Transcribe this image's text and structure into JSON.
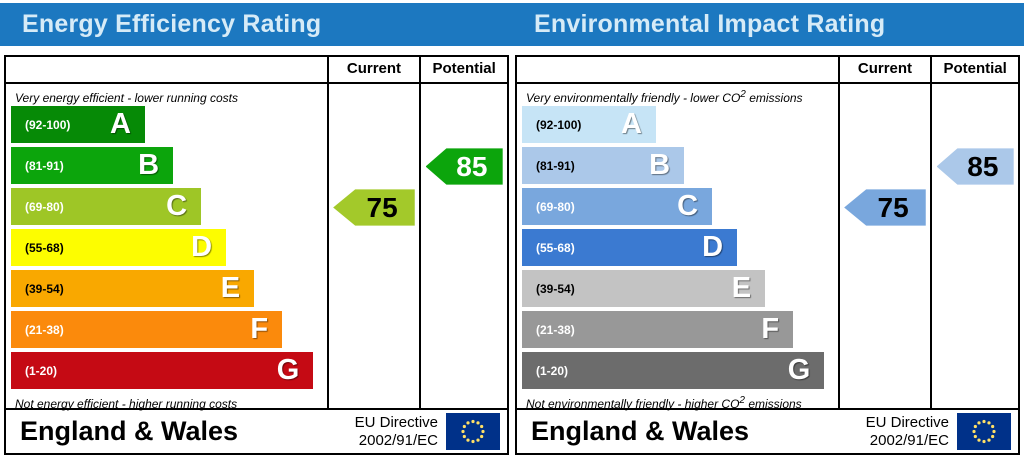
{
  "page": {
    "left_title": "Energy Efficiency Rating",
    "right_title": "Environmental Impact Rating"
  },
  "colors": {
    "header_bar": "#1c78c0",
    "header_text": "#d6ebf7",
    "eu_flag_blue": "#003189",
    "eu_flag_stars": "#ffe066"
  },
  "chart_data": [
    {
      "type": "bar",
      "title": "Energy Efficiency Rating",
      "columns": {
        "current": "Current",
        "potential": "Potential"
      },
      "top_caption": {
        "pre": "Very energy efficient - lower running costs",
        "sup": "",
        "post": ""
      },
      "bottom_caption": {
        "pre": "Not energy efficient - higher running costs",
        "sup": "",
        "post": ""
      },
      "bands": [
        {
          "letter": "A",
          "range_label": "(92-100)",
          "min": 92,
          "max": 100,
          "color": "#068a06",
          "range_text_color": "#ffffff",
          "width_pct": 43
        },
        {
          "letter": "B",
          "range_label": "(81-91)",
          "min": 81,
          "max": 91,
          "color": "#0ca50c",
          "range_text_color": "#ffffff",
          "width_pct": 52
        },
        {
          "letter": "C",
          "range_label": "(69-80)",
          "min": 69,
          "max": 80,
          "color": "#9ec626",
          "range_text_color": "#ffffff",
          "width_pct": 61
        },
        {
          "letter": "D",
          "range_label": "(55-68)",
          "min": 55,
          "max": 68,
          "color": "#fdfd00",
          "range_text_color": "#000000",
          "width_pct": 69
        },
        {
          "letter": "E",
          "range_label": "(39-54)",
          "min": 39,
          "max": 54,
          "color": "#f9a800",
          "range_text_color": "#000000",
          "width_pct": 78
        },
        {
          "letter": "F",
          "range_label": "(21-38)",
          "min": 21,
          "max": 38,
          "color": "#fb8a0c",
          "range_text_color": "#ffffff",
          "width_pct": 87
        },
        {
          "letter": "G",
          "range_label": "(1-20)",
          "min": 1,
          "max": 20,
          "color": "#c50a14",
          "range_text_color": "#ffffff",
          "width_pct": 97
        }
      ],
      "current": {
        "value": 75,
        "band": "C",
        "band_index": 2,
        "arrow_color": "#a3c92a",
        "text_color": "#000000"
      },
      "potential": {
        "value": 85,
        "band": "B",
        "band_index": 1,
        "arrow_color": "#0ca50c",
        "text_color": "#ffffff"
      },
      "footer": {
        "region": "England & Wales",
        "directive_line1": "EU Directive",
        "directive_line2": "2002/91/EC"
      }
    },
    {
      "type": "bar",
      "title": "Environmental Impact Rating",
      "columns": {
        "current": "Current",
        "potential": "Potential"
      },
      "top_caption": {
        "pre": "Very environmentally friendly - lower CO",
        "sup": "2",
        "post": " emissions"
      },
      "bottom_caption": {
        "pre": "Not environmentally friendly - higher CO",
        "sup": "2",
        "post": " emissions"
      },
      "bands": [
        {
          "letter": "A",
          "range_label": "(92-100)",
          "min": 92,
          "max": 100,
          "color": "#c6e4f6",
          "range_text_color": "#000000",
          "width_pct": 43
        },
        {
          "letter": "B",
          "range_label": "(81-91)",
          "min": 81,
          "max": 91,
          "color": "#abc8e9",
          "range_text_color": "#000000",
          "width_pct": 52
        },
        {
          "letter": "C",
          "range_label": "(69-80)",
          "min": 69,
          "max": 80,
          "color": "#79a7dd",
          "range_text_color": "#ffffff",
          "width_pct": 61
        },
        {
          "letter": "D",
          "range_label": "(55-68)",
          "min": 55,
          "max": 68,
          "color": "#3b7ad1",
          "range_text_color": "#ffffff",
          "width_pct": 69
        },
        {
          "letter": "E",
          "range_label": "(39-54)",
          "min": 39,
          "max": 54,
          "color": "#c3c3c3",
          "range_text_color": "#000000",
          "width_pct": 78
        },
        {
          "letter": "F",
          "range_label": "(21-38)",
          "min": 21,
          "max": 38,
          "color": "#989898",
          "range_text_color": "#ffffff",
          "width_pct": 87
        },
        {
          "letter": "G",
          "range_label": "(1-20)",
          "min": 1,
          "max": 20,
          "color": "#6c6c6c",
          "range_text_color": "#ffffff",
          "width_pct": 97
        }
      ],
      "current": {
        "value": 75,
        "band": "C",
        "band_index": 2,
        "arrow_color": "#79a7dd",
        "text_color": "#000000"
      },
      "potential": {
        "value": 85,
        "band": "B",
        "band_index": 1,
        "arrow_color": "#abc8e9",
        "text_color": "#000000"
      },
      "footer": {
        "region": "England & Wales",
        "directive_line1": "EU Directive",
        "directive_line2": "2002/91/EC"
      }
    }
  ]
}
